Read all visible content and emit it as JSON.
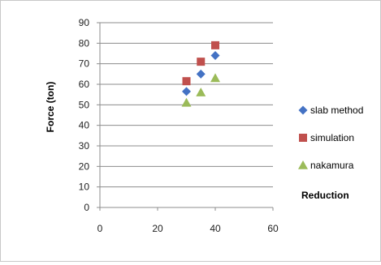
{
  "chart_data": {
    "type": "scatter",
    "title": "",
    "xlabel": "Reduction",
    "ylabel": "Force (ton)",
    "xlim": [
      0,
      60
    ],
    "ylim": [
      0,
      90
    ],
    "x_ticks": [
      "0",
      "20",
      "40",
      "60"
    ],
    "y_ticks": [
      "0",
      "10",
      "20",
      "30",
      "40",
      "50",
      "60",
      "70",
      "80",
      "90"
    ],
    "grid": "horizontal",
    "legend_position": "right",
    "series": [
      {
        "name": "slab method",
        "marker": "diamond",
        "color": "#4472C4",
        "points": [
          {
            "x": 30,
            "y": 56.5
          },
          {
            "x": 35,
            "y": 65
          },
          {
            "x": 40,
            "y": 74
          }
        ]
      },
      {
        "name": "simulation",
        "marker": "square",
        "color": "#C0504D",
        "points": [
          {
            "x": 30,
            "y": 61.5
          },
          {
            "x": 35,
            "y": 71
          },
          {
            "x": 40,
            "y": 79
          }
        ]
      },
      {
        "name": "nakamura",
        "marker": "triangle",
        "color": "#9BBB59",
        "points": [
          {
            "x": 30,
            "y": 51
          },
          {
            "x": 35,
            "y": 56
          },
          {
            "x": 40,
            "y": 63
          }
        ]
      }
    ]
  }
}
